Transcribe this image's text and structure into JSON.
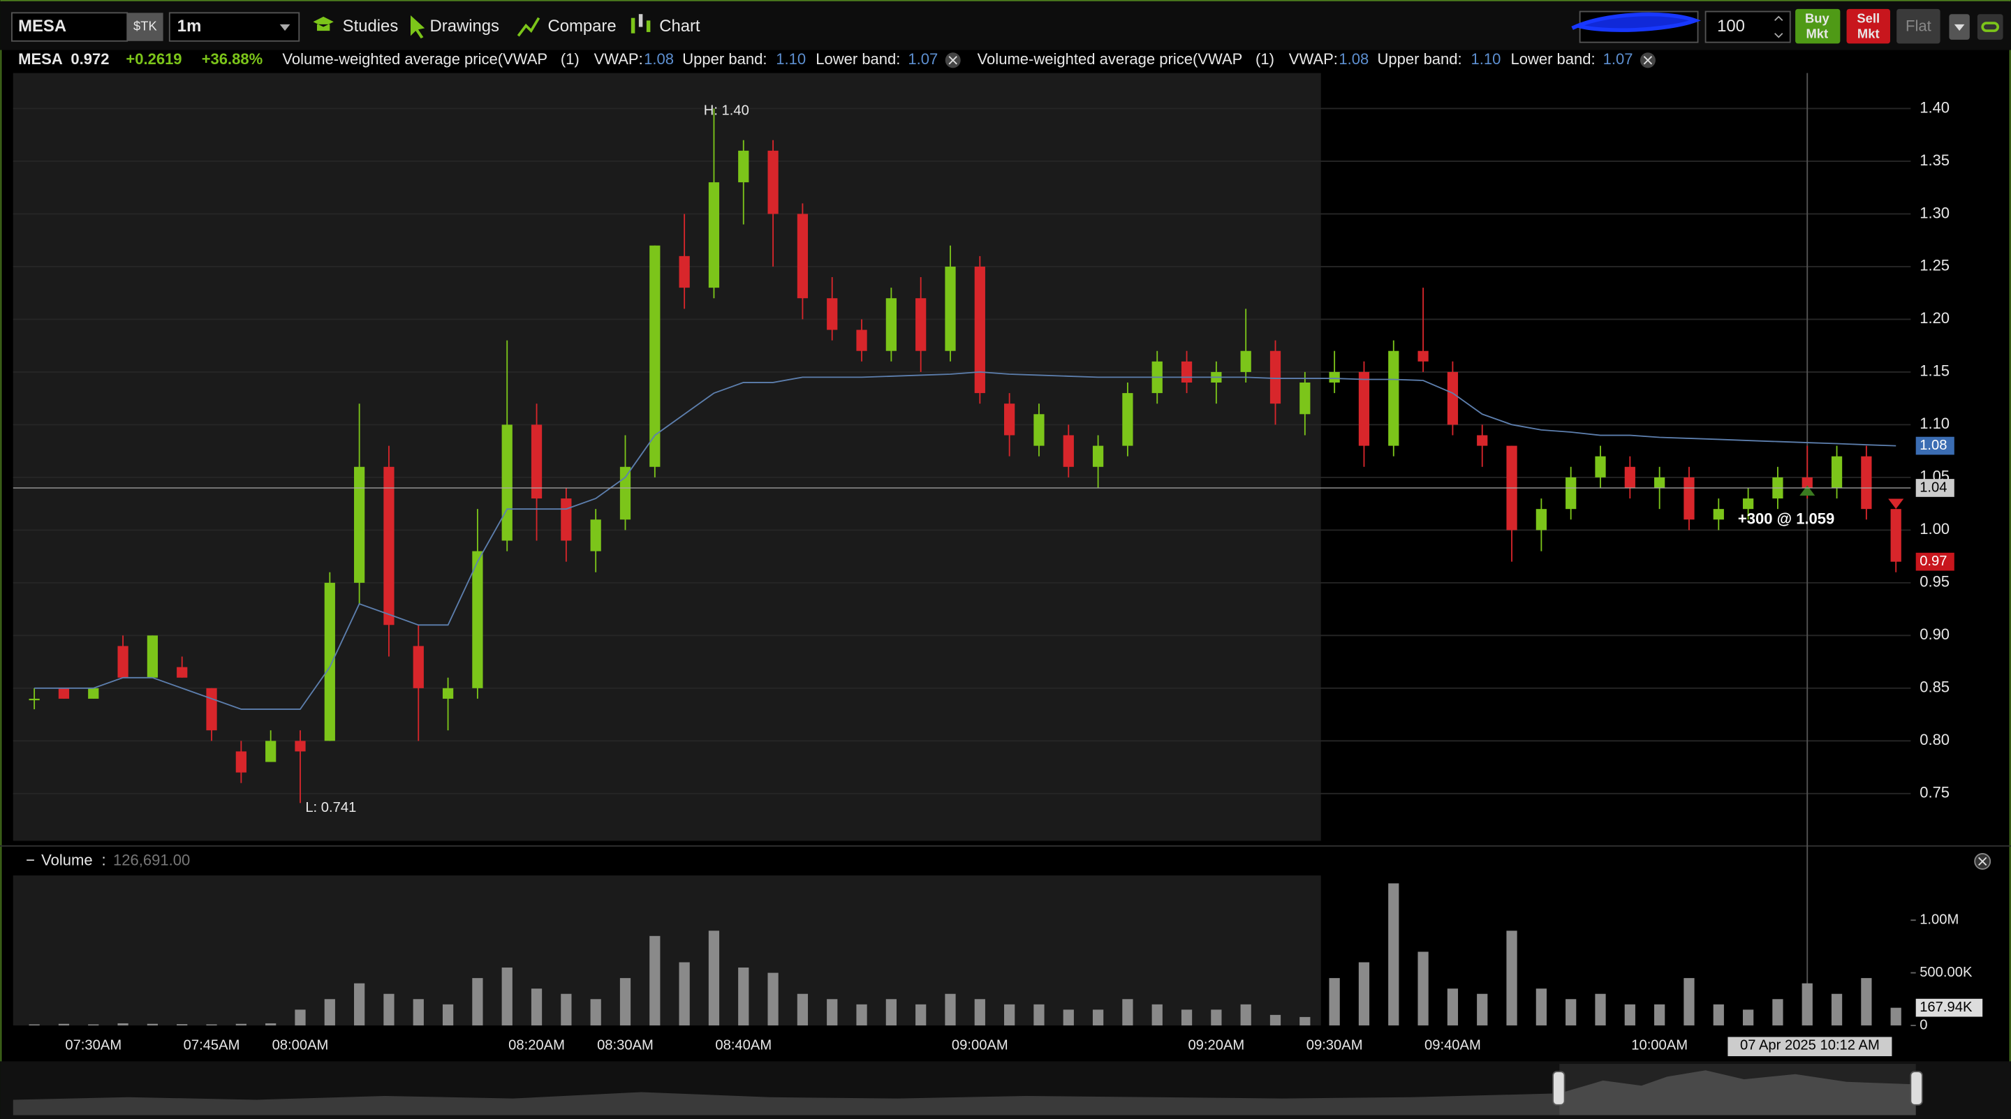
{
  "toolbar": {
    "symbol": "MESA",
    "symbol_type": "$TK",
    "interval": "1m",
    "menu": [
      "Studies",
      "Drawings",
      "Compare",
      "Chart"
    ],
    "quantity": "100",
    "buy": [
      "Buy",
      "Mkt"
    ],
    "sell": [
      "Sell",
      "Mkt"
    ],
    "flat": "Flat"
  },
  "quote": {
    "symbol": "MESA",
    "last": "0.972",
    "change": "+0.2619",
    "change_pct": "+36.88%"
  },
  "studies": [
    {
      "name": "Volume-weighted average price(VWAP",
      "period": "(1)",
      "vwap_label": "VWAP:",
      "vwap": "1.08",
      "upper_label": "Upper band:",
      "upper": "1.10",
      "lower_label": "Lower band:",
      "lower": "1.07"
    },
    {
      "name": "Volume-weighted average price(VWAP",
      "period": "(1)",
      "vwap_label": "VWAP:",
      "vwap": "1.08",
      "upper_label": "Upper band:",
      "upper": "1.10",
      "lower_label": "Lower band:",
      "lower": "1.07"
    }
  ],
  "volume_header": {
    "label": "Volume",
    "sep": ":",
    "value": "126,691.00"
  },
  "chart_data": [
    {
      "type": "candlestick",
      "open": [
        0.84,
        0.85,
        0.84,
        0.89,
        0.86,
        0.87,
        0.85,
        0.79,
        0.78,
        0.8,
        0.8,
        0.95,
        1.06,
        0.89,
        0.84,
        0.85,
        0.99,
        1.1,
        1.03,
        0.98,
        1.01,
        1.06,
        1.26,
        1.23,
        1.33,
        1.36,
        1.3,
        1.22,
        1.19,
        1.17,
        1.22,
        1.17,
        1.25,
        1.12,
        1.08,
        1.09,
        1.06,
        1.08,
        1.13,
        1.16,
        1.14,
        1.15,
        1.17,
        1.11,
        1.14,
        1.15,
        1.08,
        1.17,
        1.15,
        1.09,
        1.08,
        1.0,
        1.02,
        1.05,
        1.06,
        1.04,
        1.05,
        1.01,
        1.02,
        1.03,
        1.05,
        1.04,
        1.07,
        1.02
      ],
      "high": [
        0.85,
        0.85,
        0.85,
        0.9,
        0.9,
        0.88,
        0.85,
        0.8,
        0.81,
        0.81,
        0.96,
        1.12,
        1.08,
        0.91,
        0.86,
        1.02,
        1.18,
        1.12,
        1.04,
        1.02,
        1.09,
        1.27,
        1.3,
        1.4,
        1.37,
        1.37,
        1.31,
        1.24,
        1.2,
        1.23,
        1.24,
        1.27,
        1.26,
        1.13,
        1.12,
        1.1,
        1.09,
        1.14,
        1.17,
        1.17,
        1.16,
        1.21,
        1.18,
        1.15,
        1.17,
        1.16,
        1.18,
        1.23,
        1.16,
        1.1,
        1.08,
        1.03,
        1.06,
        1.08,
        1.07,
        1.06,
        1.06,
        1.03,
        1.04,
        1.06,
        1.08,
        1.08,
        1.08,
        1.02
      ],
      "low": [
        0.83,
        0.84,
        0.84,
        0.86,
        0.86,
        0.86,
        0.8,
        0.76,
        0.78,
        0.741,
        0.8,
        0.93,
        0.88,
        0.8,
        0.81,
        0.84,
        0.98,
        0.99,
        0.97,
        0.96,
        1.0,
        1.05,
        1.21,
        1.22,
        1.29,
        1.25,
        1.2,
        1.18,
        1.16,
        1.16,
        1.15,
        1.16,
        1.12,
        1.07,
        1.07,
        1.05,
        1.04,
        1.07,
        1.12,
        1.13,
        1.12,
        1.14,
        1.1,
        1.09,
        1.13,
        1.06,
        1.07,
        1.15,
        1.09,
        1.06,
        0.97,
        0.98,
        1.01,
        1.04,
        1.03,
        1.02,
        1.0,
        1.0,
        1.01,
        1.02,
        1.03,
        1.03,
        1.01,
        0.96
      ],
      "close": [
        0.84,
        0.84,
        0.85,
        0.86,
        0.9,
        0.86,
        0.81,
        0.77,
        0.8,
        0.79,
        0.95,
        1.06,
        0.91,
        0.85,
        0.85,
        0.98,
        1.1,
        1.03,
        0.99,
        1.01,
        1.06,
        1.27,
        1.23,
        1.33,
        1.36,
        1.3,
        1.22,
        1.19,
        1.17,
        1.22,
        1.17,
        1.25,
        1.13,
        1.09,
        1.11,
        1.06,
        1.08,
        1.13,
        1.16,
        1.14,
        1.15,
        1.17,
        1.12,
        1.14,
        1.15,
        1.08,
        1.17,
        1.16,
        1.1,
        1.08,
        1.0,
        1.02,
        1.05,
        1.07,
        1.04,
        1.05,
        1.01,
        1.02,
        1.03,
        1.05,
        1.04,
        1.07,
        1.02,
        0.97
      ],
      "up_color": "#7cc51a",
      "down_color": "#d8262b",
      "overlay": {
        "values": [
          0.85,
          0.85,
          0.85,
          0.86,
          0.86,
          0.85,
          0.84,
          0.83,
          0.83,
          0.83,
          0.87,
          0.93,
          0.92,
          0.91,
          0.91,
          0.97,
          1.02,
          1.02,
          1.02,
          1.03,
          1.05,
          1.09,
          1.11,
          1.13,
          1.14,
          1.14,
          1.145,
          1.145,
          1.145,
          1.146,
          1.147,
          1.148,
          1.15,
          1.148,
          1.147,
          1.146,
          1.145,
          1.145,
          1.145,
          1.145,
          1.145,
          1.145,
          1.144,
          1.144,
          1.144,
          1.143,
          1.143,
          1.142,
          1.13,
          1.11,
          1.1,
          1.095,
          1.093,
          1.09,
          1.09,
          1.088,
          1.087,
          1.086,
          1.085,
          1.084,
          1.083,
          1.082,
          1.081,
          1.08
        ],
        "color": "#5d7fae"
      },
      "ylim": [
        0.71,
        1.43
      ],
      "yticks": [
        0.75,
        {
          "value": 0.8,
          "label": "0.80"
        },
        0.85,
        {
          "value": 0.9,
          "label": "0.90"
        },
        0.95,
        {
          "value": 1.0,
          "label": "1.00"
        },
        1.05,
        {
          "value": 1.1,
          "label": "1.10"
        },
        1.15,
        {
          "value": 1.2,
          "label": "1.20"
        },
        1.25,
        {
          "value": 1.3,
          "label": "1.30"
        },
        1.35,
        {
          "value": 1.4,
          "label": "1.40"
        }
      ],
      "grid": true,
      "crosshair_y": 1.04,
      "annotations": {
        "high": "H: 1.40",
        "low": "L: 0.741",
        "trade": "+300 @ 1.059"
      }
    },
    {
      "type": "bar",
      "categories": [
        null,
        null,
        "07:30AM",
        null,
        null,
        null,
        "07:45AM",
        null,
        null,
        "08:00AM",
        null,
        null,
        null,
        null,
        null,
        null,
        null,
        "08:20AM",
        null,
        null,
        "08:30AM",
        null,
        null,
        null,
        "08:40AM",
        null,
        null,
        null,
        null,
        null,
        null,
        null,
        "09:00AM",
        null,
        null,
        null,
        null,
        null,
        null,
        null,
        "09:20AM",
        null,
        null,
        null,
        "09:30AM",
        null,
        null,
        null,
        "09:40AM",
        null,
        null,
        null,
        null,
        null,
        null,
        "10:00AM",
        null,
        null,
        null,
        null,
        null,
        null,
        null,
        null
      ],
      "values": [
        10000,
        15000,
        10000,
        20000,
        15000,
        12000,
        10000,
        15000,
        20000,
        150000,
        250000,
        400000,
        300000,
        250000,
        200000,
        450000,
        550000,
        350000,
        300000,
        250000,
        450000,
        850000,
        600000,
        900000,
        550000,
        500000,
        300000,
        250000,
        200000,
        250000,
        200000,
        300000,
        250000,
        200000,
        200000,
        150000,
        150000,
        250000,
        200000,
        150000,
        150000,
        200000,
        100000,
        80000,
        450000,
        600000,
        1350000,
        700000,
        350000,
        300000,
        900000,
        350000,
        250000,
        300000,
        200000,
        200000,
        450000,
        200000,
        150000,
        250000,
        400000,
        300000,
        450000,
        167940
      ],
      "color": "#8a8a8a",
      "ylim": [
        0,
        1425000
      ],
      "yticks": [
        0,
        {
          "value": 500000,
          "label": "500.00K"
        },
        {
          "value": 1000000,
          "label": "1.00M"
        }
      ],
      "tag": {
        "value": 167940,
        "label": "167.94K"
      },
      "crosshair_x_label": "07 Apr 2025 10:12 AM"
    }
  ]
}
